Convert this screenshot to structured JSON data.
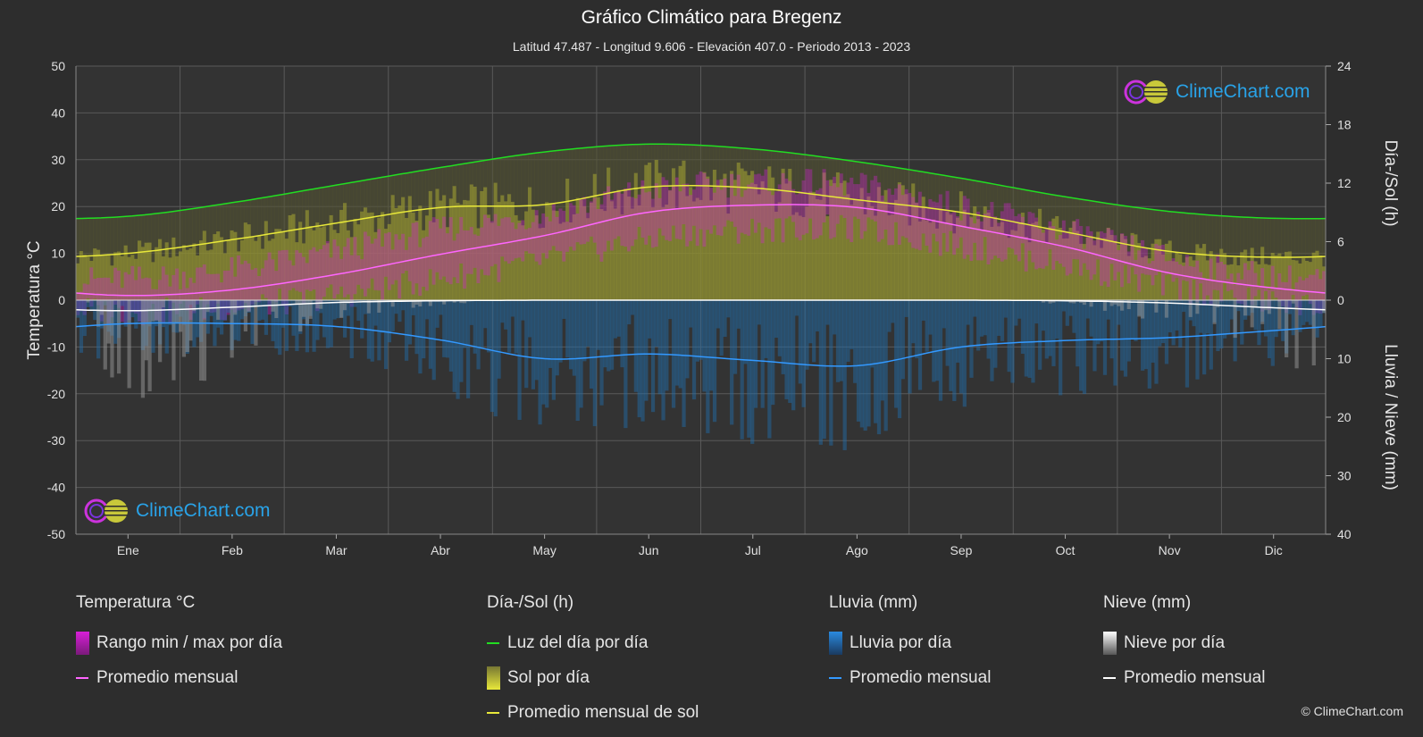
{
  "title": "Gráfico Climático para Bregenz",
  "subtitle": "Latitud 47.487 - Longitud 9.606 - Elevación 407.0 - Periodo 2013 - 2023",
  "logo_text": "ClimeChart.com",
  "copyright": "© ClimeChart.com",
  "colors": {
    "background": "#2d2d2d",
    "grid": "#5a5a5a",
    "temp_range": "#d81fd8",
    "temp_avg": "#ff66ff",
    "daylight": "#22dd22",
    "sun_bar": "#a8a832",
    "sun_avg": "#e8e83a",
    "rain": "#1f6fb0",
    "rain_avg": "#3399ff",
    "snow": "#9a9a9a",
    "snow_avg": "#ffffff",
    "logo": "#29a3e8"
  },
  "legend": {
    "temp": {
      "title": "Temperatura °C",
      "range_label": "Rango min / max por día",
      "avg_label": "Promedio mensual"
    },
    "sun": {
      "title": "Día-/Sol (h)",
      "daylight_label": "Luz del día por día",
      "sun_label": "Sol por día",
      "avg_label": "Promedio mensual de sol"
    },
    "rain": {
      "title": "Lluvia (mm)",
      "day_label": "Lluvia por día",
      "avg_label": "Promedio mensual"
    },
    "snow": {
      "title": "Nieve (mm)",
      "day_label": "Nieve por día",
      "avg_label": "Promedio mensual"
    }
  },
  "chart_data": {
    "type": "line",
    "categories": [
      "Ene",
      "Feb",
      "Mar",
      "Abr",
      "May",
      "Jun",
      "Jul",
      "Ago",
      "Sep",
      "Oct",
      "Nov",
      "Dic"
    ],
    "y_left": {
      "label": "Temperatura °C",
      "range": [
        -50,
        50
      ],
      "ticks": [
        50,
        40,
        30,
        20,
        10,
        0,
        -10,
        -20,
        -30,
        -40,
        -50
      ]
    },
    "y_right_top": {
      "label": "Día-/Sol (h)",
      "range": [
        0,
        24
      ],
      "ticks": [
        24,
        18,
        12,
        6,
        0
      ]
    },
    "y_right_bottom": {
      "label": "Lluvia / Nieve (mm)",
      "range": [
        0,
        40
      ],
      "ticks": [
        0,
        10,
        20,
        30,
        40
      ]
    },
    "grid": true,
    "series": [
      {
        "name": "Luz del día por día",
        "axis": "hours",
        "values": [
          8.6,
          10.0,
          11.8,
          13.6,
          15.2,
          16.0,
          15.5,
          14.2,
          12.5,
          10.6,
          9.1,
          8.4
        ]
      },
      {
        "name": "Promedio mensual de sol",
        "axis": "hours",
        "values": [
          4.8,
          6.2,
          7.9,
          9.5,
          9.8,
          11.6,
          11.5,
          10.3,
          9.0,
          7.0,
          5.0,
          4.4
        ]
      },
      {
        "name": "Sol por día",
        "axis": "hours",
        "values": [
          4.8,
          6.2,
          7.9,
          9.5,
          9.8,
          11.6,
          11.5,
          10.3,
          9.0,
          7.0,
          5.0,
          4.4
        ]
      },
      {
        "name": "Temperatura máxima diaria",
        "axis": "temp",
        "values": [
          4.5,
          6.5,
          10.5,
          15.0,
          18.5,
          23.5,
          25.0,
          24.5,
          20.0,
          15.0,
          9.0,
          5.0
        ]
      },
      {
        "name": "Temperatura mínima diaria",
        "axis": "temp",
        "values": [
          -2.5,
          -1.5,
          1.0,
          4.5,
          8.5,
          13.0,
          15.0,
          15.0,
          11.5,
          7.5,
          3.0,
          -0.5
        ]
      },
      {
        "name": "Temperatura promedio mensual",
        "axis": "temp",
        "values": [
          1.0,
          2.2,
          5.5,
          9.8,
          13.8,
          18.8,
          20.3,
          19.8,
          15.8,
          11.4,
          5.8,
          2.6
        ]
      },
      {
        "name": "Lluvia promedio mensual",
        "axis": "precip",
        "values": [
          4.0,
          4.0,
          4.5,
          6.8,
          10.0,
          9.2,
          10.3,
          11.2,
          8.0,
          6.9,
          6.4,
          5.2
        ]
      },
      {
        "name": "Nieve promedio mensual",
        "axis": "precip",
        "values": [
          1.8,
          1.2,
          0.4,
          0.1,
          0.0,
          0.0,
          0.0,
          0.0,
          0.0,
          0.1,
          0.5,
          1.3
        ]
      }
    ]
  }
}
